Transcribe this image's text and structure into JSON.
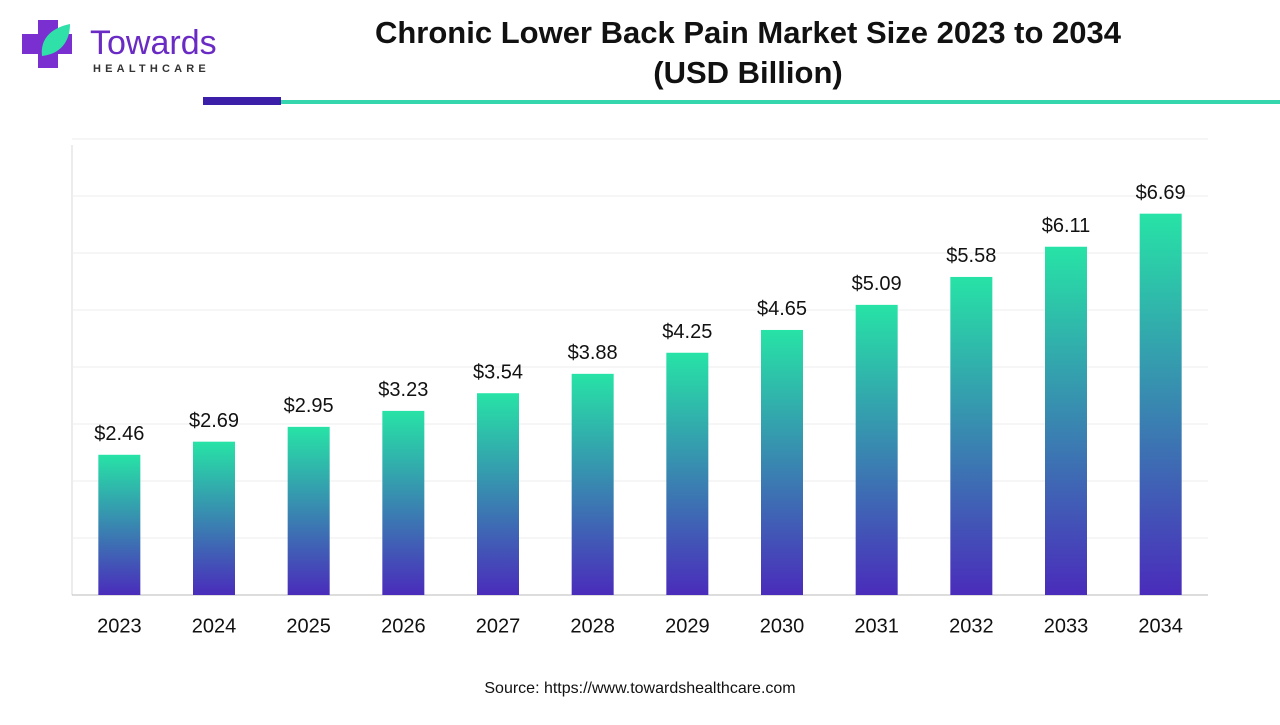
{
  "logo": {
    "name": "Towards",
    "tagline": "HEALTHCARE"
  },
  "chart_data": {
    "type": "bar",
    "title": "Chronic Lower Back Pain Market Size 2023 to 2034",
    "subtitle": "(USD Billion)",
    "categories": [
      "2023",
      "2024",
      "2025",
      "2026",
      "2027",
      "2028",
      "2029",
      "2030",
      "2031",
      "2032",
      "2033",
      "2034"
    ],
    "values": [
      2.46,
      2.69,
      2.95,
      3.23,
      3.54,
      3.88,
      4.25,
      4.65,
      5.09,
      5.58,
      6.11,
      6.69
    ],
    "value_labels": [
      "$2.46",
      "$2.69",
      "$2.95",
      "$3.23",
      "$3.54",
      "$3.88",
      "$4.25",
      "$4.65",
      "$5.09",
      "$5.58",
      "$6.11",
      "$6.69"
    ],
    "gradient": [
      "#27e3a6",
      "#4a2cbb"
    ],
    "ylim": [
      0,
      8
    ],
    "yticks": [
      0,
      1,
      2,
      3,
      4,
      5,
      6,
      7,
      8
    ],
    "grid": true,
    "source": "Source: https://www.towardshealthcare.com"
  }
}
